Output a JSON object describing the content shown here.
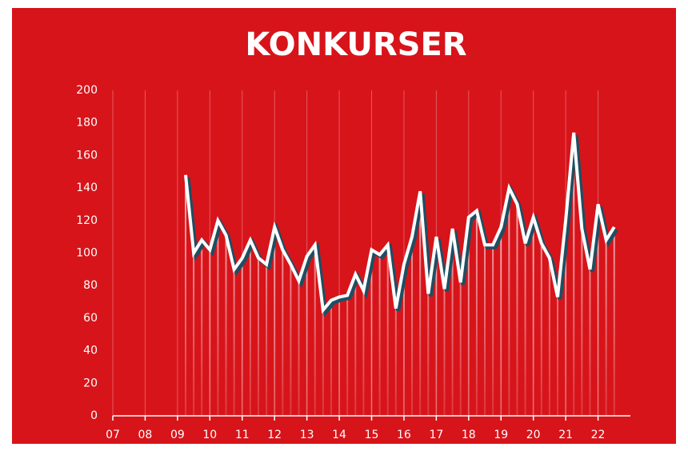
{
  "chart_data": {
    "type": "line",
    "title": "KONKURSER",
    "x": [
      9.25,
      9.5,
      9.75,
      10,
      10.25,
      10.5,
      10.75,
      11,
      11.25,
      11.5,
      11.75,
      12,
      12.25,
      12.5,
      12.75,
      13,
      13.25,
      13.5,
      13.75,
      14,
      14.25,
      14.5,
      14.75,
      15,
      15.25,
      15.5,
      15.75,
      16,
      16.25,
      16.5,
      16.75,
      17,
      17.25,
      17.5,
      17.75,
      18,
      18.25,
      18.5,
      18.75,
      19,
      19.25,
      19.5,
      19.75,
      20,
      20.25,
      20.5,
      20.75,
      21,
      21.25,
      21.5,
      21.75,
      22,
      22.25,
      22.5
    ],
    "values": [
      148,
      100,
      108,
      102,
      120,
      111,
      90,
      97,
      108,
      97,
      93,
      116,
      102,
      93,
      83,
      98,
      105,
      65,
      71,
      73,
      74,
      87,
      77,
      102,
      99,
      105,
      66,
      93,
      110,
      138,
      75,
      110,
      78,
      115,
      82,
      122,
      126,
      105,
      105,
      116,
      140,
      130,
      106,
      122,
      106,
      97,
      73,
      120,
      174,
      115,
      90,
      130,
      108,
      116
    ],
    "color": "#ffffff",
    "xlim": [
      7,
      23
    ],
    "xticks": [
      {
        "value": 7,
        "label": "07"
      },
      {
        "value": 8,
        "label": "08"
      },
      {
        "value": 9,
        "label": "09"
      },
      10,
      11,
      12,
      13,
      14,
      15,
      16,
      17,
      18,
      19,
      20,
      21,
      22
    ],
    "ylim": [
      0,
      200
    ],
    "yticks": [
      0,
      20,
      40,
      60,
      80,
      100,
      120,
      140,
      160,
      180,
      200
    ],
    "grid": true
  }
}
